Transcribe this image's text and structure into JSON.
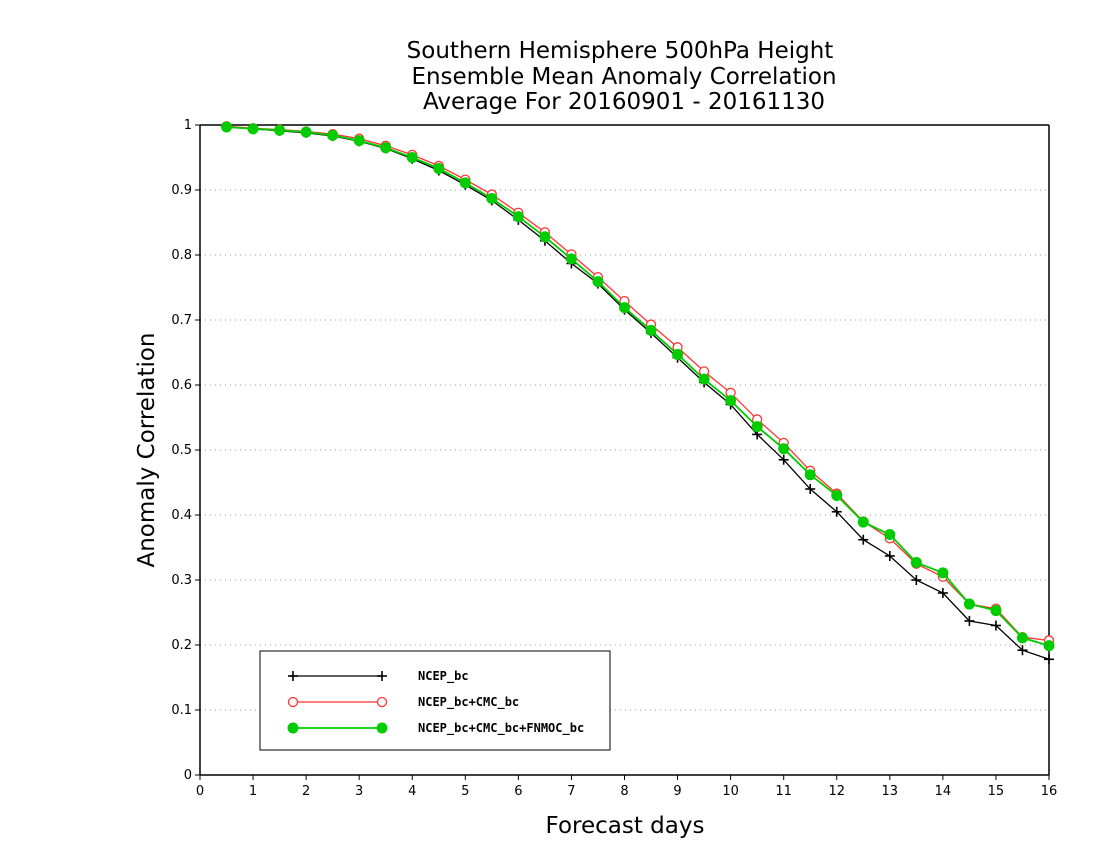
{
  "chart_data": {
    "type": "line",
    "title": [
      "Southern Hemisphere 500hPa Height",
      "Ensemble Mean Anomaly Correlation",
      "Average For 20160901 - 20161130"
    ],
    "xlabel": "Forecast days",
    "ylabel": "Anomaly Correlation",
    "xlim": [
      0,
      16
    ],
    "ylim": [
      0,
      1
    ],
    "xticks": [
      "0",
      "1",
      "2",
      "3",
      "4",
      "5",
      "6",
      "7",
      "8",
      "9",
      "10",
      "11",
      "12",
      "13",
      "14",
      "15",
      "16"
    ],
    "yticks": [
      "0",
      "0.1",
      "0.2",
      "0.3",
      "0.4",
      "0.5",
      "0.6",
      "0.7",
      "0.8",
      "0.9",
      "1"
    ],
    "grid": "horizontal-dotted",
    "legend_position": "bottom-left",
    "x": [
      0.5,
      1,
      1.5,
      2,
      2.5,
      3,
      3.5,
      4,
      4.5,
      5,
      5.5,
      6,
      6.5,
      7,
      7.5,
      8,
      8.5,
      9,
      9.5,
      10,
      10.5,
      11,
      11.5,
      12,
      12.5,
      13,
      13.5,
      14,
      14.5,
      15,
      15.5,
      16
    ],
    "series": [
      {
        "name": "NCEP_bc",
        "color": "#000000",
        "marker": "plus",
        "values": [
          0.997,
          0.994,
          0.991,
          0.988,
          0.983,
          0.975,
          0.964,
          0.948,
          0.93,
          0.908,
          0.884,
          0.854,
          0.822,
          0.787,
          0.756,
          0.716,
          0.68,
          0.642,
          0.604,
          0.57,
          0.524,
          0.485,
          0.44,
          0.405,
          0.362,
          0.337,
          0.3,
          0.28,
          0.237,
          0.23,
          0.192,
          0.178
        ]
      },
      {
        "name": "NCEP_bc+CMC_bc",
        "color": "#ff3333",
        "marker": "open-circle",
        "values": [
          0.998,
          0.995,
          0.993,
          0.99,
          0.986,
          0.979,
          0.968,
          0.954,
          0.937,
          0.916,
          0.893,
          0.865,
          0.835,
          0.801,
          0.766,
          0.729,
          0.693,
          0.658,
          0.621,
          0.588,
          0.547,
          0.511,
          0.468,
          0.433,
          0.39,
          0.364,
          0.325,
          0.305,
          0.263,
          0.256,
          0.212,
          0.207
        ]
      },
      {
        "name": "NCEP_bc+CMC_bc+FNMOC_bc",
        "color": "#00cc00",
        "marker": "filled-circle",
        "values": [
          0.997,
          0.994,
          0.992,
          0.989,
          0.984,
          0.976,
          0.965,
          0.95,
          0.933,
          0.911,
          0.887,
          0.859,
          0.828,
          0.794,
          0.759,
          0.719,
          0.684,
          0.647,
          0.609,
          0.576,
          0.536,
          0.502,
          0.462,
          0.43,
          0.389,
          0.37,
          0.327,
          0.311,
          0.263,
          0.253,
          0.211,
          0.199
        ]
      }
    ]
  }
}
